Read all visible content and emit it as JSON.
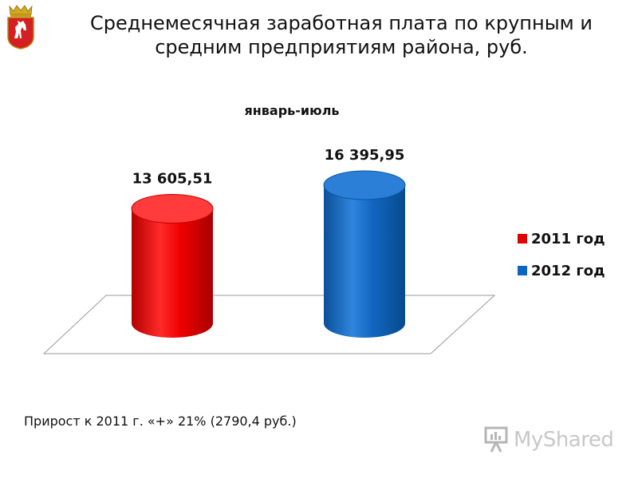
{
  "slide": {
    "title_line1": "Среднемесячная заработная плата по крупным и",
    "title_line2": "средним  предприятиям района, руб.",
    "footnote": "Прирост к 2011 г. «+» 21% (2790,4 руб.)",
    "watermark": "MyShared"
  },
  "colors": {
    "series_2011": "#e00000",
    "series_2012": "#0a66c2",
    "emblem_red": "#d32022",
    "emblem_gold": "#d4a820"
  },
  "chart_data": {
    "type": "bar",
    "subtitle": "январь-июль",
    "categories": [
      "январь-июль"
    ],
    "series": [
      {
        "name": "2011 год",
        "values": [
          13605.51
        ],
        "label": "13 605,51",
        "color": "#e00000"
      },
      {
        "name": "2012 год",
        "values": [
          16395.95
        ],
        "label": "16 395,95",
        "color": "#0a66c2"
      }
    ],
    "legend_position": "right",
    "grid": false,
    "ylim": [
      0,
      16395.95
    ]
  }
}
